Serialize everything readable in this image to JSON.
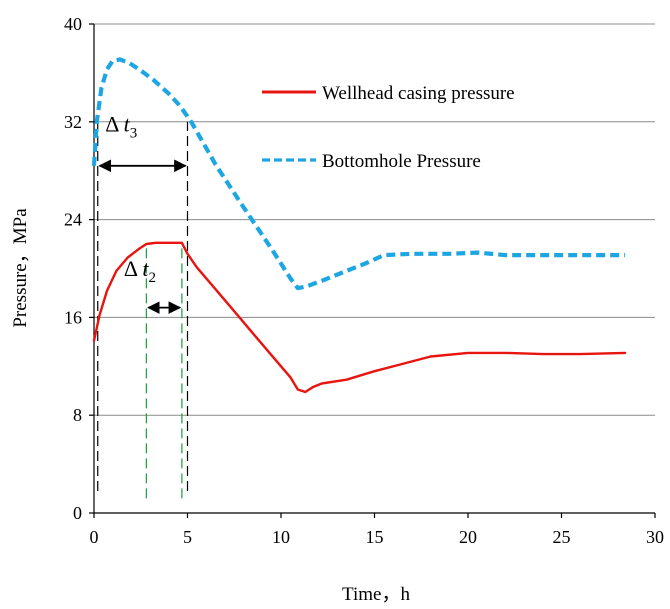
{
  "chart_data": {
    "type": "line",
    "xlabel": "Time，h",
    "ylabel": "Pressure，MPa",
    "xlim": [
      0,
      30
    ],
    "ylim": [
      0,
      40
    ],
    "xticks": [
      "0",
      "5",
      "10",
      "15",
      "20",
      "25",
      "30"
    ],
    "yticks": [
      "0",
      "8",
      "16",
      "24",
      "32",
      "40"
    ],
    "grid": "horizontal",
    "legend_position": "top-right",
    "series": [
      {
        "name": "Wellhead casing pressure",
        "color": "#e8140f",
        "style": "solid",
        "x": [
          0,
          0.3,
          0.7,
          1.2,
          1.8,
          2.4,
          2.8,
          3.3,
          4.0,
          4.7,
          5.0,
          5.5,
          6.5,
          7.5,
          8.5,
          9.5,
          10.5,
          10.9,
          11.3,
          11.7,
          12.2,
          13.5,
          15,
          16.5,
          18,
          20,
          22,
          24,
          26,
          28.4
        ],
        "y": [
          14.1,
          16.2,
          18.2,
          19.8,
          20.9,
          21.6,
          22.0,
          22.1,
          22.1,
          22.1,
          21.2,
          20.1,
          18.3,
          16.5,
          14.7,
          12.9,
          11.1,
          10.1,
          9.9,
          10.3,
          10.6,
          10.9,
          11.6,
          12.2,
          12.8,
          13.1,
          13.1,
          13.0,
          13.0,
          13.1
        ]
      },
      {
        "name": "Bottomhole Pressure",
        "color": "#1ea6e3",
        "style": "dashed",
        "x": [
          0,
          0.15,
          0.4,
          0.7,
          1.0,
          1.4,
          1.9,
          2.5,
          3.2,
          4.0,
          4.6,
          5.2,
          6.5,
          8.0,
          9.5,
          10.5,
          10.9,
          11.3,
          12.2,
          13.5,
          14.5,
          15.5,
          17,
          19,
          20.5,
          22,
          24,
          26,
          28.4
        ],
        "y": [
          28.4,
          32.0,
          34.8,
          36.3,
          37.0,
          37.1,
          36.8,
          36.2,
          35.4,
          34.3,
          33.3,
          32.0,
          28.5,
          25.0,
          21.6,
          19.2,
          18.4,
          18.5,
          19.0,
          19.8,
          20.4,
          21.1,
          21.2,
          21.2,
          21.3,
          21.1,
          21.1,
          21.1,
          21.1
        ]
      }
    ],
    "annotations": [
      {
        "symbol": "Δ",
        "variable": "t",
        "subscript": "3",
        "from_x": 0.2,
        "to_x": 5.0
      },
      {
        "symbol": "Δ",
        "variable": "t",
        "subscript": "2",
        "from_x": 2.8,
        "to_x": 4.7
      }
    ],
    "guide_lines": [
      {
        "x": 0.2,
        "color": "#000000",
        "from_y": 1.8,
        "to_y": 32.0
      },
      {
        "x": 5.0,
        "color": "#000000",
        "from_y": 1.8,
        "to_y": 32.0
      },
      {
        "x": 2.8,
        "color": "#1b9e3a",
        "from_y": 1.2,
        "to_y": 22.0
      },
      {
        "x": 4.7,
        "color": "#1b9e3a",
        "from_y": 1.2,
        "to_y": 22.0
      }
    ]
  }
}
